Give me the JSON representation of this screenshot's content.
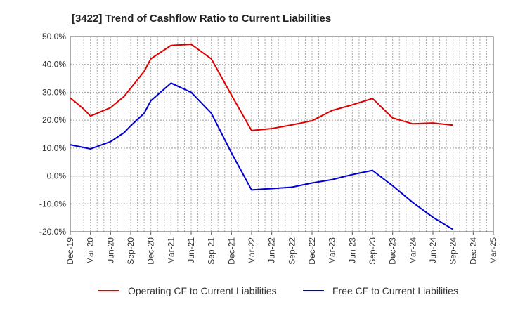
{
  "chart_data": {
    "type": "line",
    "title": "[3422]  Trend of Cashflow Ratio to Current Liabilities",
    "xlabel": "",
    "ylabel": "",
    "ylim": [
      -20,
      50
    ],
    "ytick_step": 10,
    "grid": true,
    "legend_position": "bottom",
    "categories": [
      "Dec-19",
      "Mar-20",
      "Jun-20",
      "Sep-20",
      "Dec-20",
      "Mar-21",
      "Jun-21",
      "Sep-21",
      "Dec-21",
      "Mar-22",
      "Jun-22",
      "Sep-22",
      "Dec-22",
      "Mar-23",
      "Jun-23",
      "Sep-23",
      "Dec-23",
      "Mar-24",
      "Jun-24",
      "Sep-24",
      "Dec-24",
      "Mar-25"
    ],
    "x": [
      "Dec-19",
      "Feb-20",
      "Mar-20",
      "Jun-20",
      "Aug-20",
      "Sep-20",
      "Nov-20",
      "Dec-20",
      "Mar-21",
      "Jun-21",
      "Sep-21",
      "Dec-21",
      "Mar-22",
      "Jun-22",
      "Sep-22",
      "Dec-22",
      "Mar-23",
      "Jun-23",
      "Sep-23",
      "Dec-23",
      "Mar-24",
      "Jun-24",
      "Sep-24"
    ],
    "series": [
      {
        "name": "Operating CF to Current Liabilities",
        "color": "#e00000",
        "points": [
          {
            "x": "Dec-19",
            "y": 28.0
          },
          {
            "x": "Feb-20",
            "y": 24.0
          },
          {
            "x": "Mar-20",
            "y": 21.5
          },
          {
            "x": "Jun-20",
            "y": 24.5
          },
          {
            "x": "Aug-20",
            "y": 28.5
          },
          {
            "x": "Sep-20",
            "y": 31.5
          },
          {
            "x": "Nov-20",
            "y": 37.5
          },
          {
            "x": "Dec-20",
            "y": 42.0
          },
          {
            "x": "Mar-21",
            "y": 46.8
          },
          {
            "x": "Jun-21",
            "y": 47.2
          },
          {
            "x": "Sep-21",
            "y": 42.0
          },
          {
            "x": "Dec-21",
            "y": 29.0
          },
          {
            "x": "Mar-22",
            "y": 16.3
          },
          {
            "x": "Jun-22",
            "y": 17.0
          },
          {
            "x": "Sep-22",
            "y": 18.3
          },
          {
            "x": "Dec-22",
            "y": 19.8
          },
          {
            "x": "Mar-23",
            "y": 23.5
          },
          {
            "x": "Jun-23",
            "y": 25.5
          },
          {
            "x": "Sep-23",
            "y": 27.8
          },
          {
            "x": "Dec-23",
            "y": 20.8
          },
          {
            "x": "Mar-24",
            "y": 18.7
          },
          {
            "x": "Jun-24",
            "y": 19.0
          },
          {
            "x": "Sep-24",
            "y": 18.2
          }
        ]
      },
      {
        "name": "Free CF to Current Liabilities",
        "color": "#0000d0",
        "points": [
          {
            "x": "Dec-19",
            "y": 11.2
          },
          {
            "x": "Mar-20",
            "y": 9.7
          },
          {
            "x": "Jun-20",
            "y": 12.3
          },
          {
            "x": "Aug-20",
            "y": 15.5
          },
          {
            "x": "Sep-20",
            "y": 18.0
          },
          {
            "x": "Nov-20",
            "y": 22.5
          },
          {
            "x": "Dec-20",
            "y": 27.0
          },
          {
            "x": "Mar-21",
            "y": 33.3
          },
          {
            "x": "Jun-21",
            "y": 30.0
          },
          {
            "x": "Sep-21",
            "y": 22.5
          },
          {
            "x": "Dec-21",
            "y": 8.3
          },
          {
            "x": "Mar-22",
            "y": -5.0
          },
          {
            "x": "Jun-22",
            "y": -4.5
          },
          {
            "x": "Sep-22",
            "y": -4.0
          },
          {
            "x": "Dec-22",
            "y": -2.5
          },
          {
            "x": "Mar-23",
            "y": -1.3
          },
          {
            "x": "Jun-23",
            "y": 0.5
          },
          {
            "x": "Sep-23",
            "y": 2.0
          },
          {
            "x": "Dec-23",
            "y": -3.5
          },
          {
            "x": "Mar-24",
            "y": -9.5
          },
          {
            "x": "Jun-24",
            "y": -14.8
          },
          {
            "x": "Sep-24",
            "y": -19.2
          }
        ]
      }
    ]
  }
}
